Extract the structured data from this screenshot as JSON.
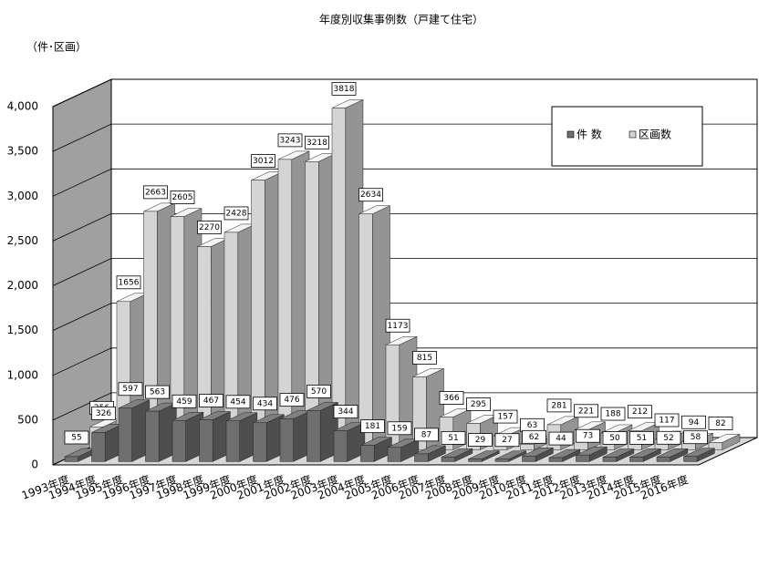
{
  "chart_data": {
    "type": "bar3d",
    "title": "年度別収集事例数（戸建て住宅）",
    "y_label": "（件･区画）",
    "categories": [
      "1993年度",
      "1994年度",
      "1995年度",
      "1996年度",
      "1997年度",
      "1998年度",
      "1999年度",
      "2000年度",
      "2001年度",
      "2002年度",
      "2003年度",
      "2004年度",
      "2005年度",
      "2006年度",
      "2007年度",
      "2008年度",
      "2009年度",
      "2010年度",
      "2011年度",
      "2012年度",
      "2013年度",
      "2014年度",
      "2015年度",
      "2016年度"
    ],
    "series": [
      {
        "name": "件 数",
        "color": "#6f6f6f",
        "values": [
          55,
          326,
          597,
          563,
          459,
          467,
          454,
          434,
          476,
          570,
          344,
          181,
          159,
          87,
          51,
          29,
          27,
          62,
          44,
          73,
          50,
          51,
          52,
          58
        ]
      },
      {
        "name": "区画数",
        "color": "#d4d4d4",
        "values": [
          256,
          1656,
          2663,
          2605,
          2270,
          2428,
          3012,
          3243,
          3218,
          3818,
          2634,
          1173,
          815,
          366,
          295,
          157,
          63,
          281,
          221,
          188,
          212,
          117,
          94,
          82
        ]
      }
    ],
    "ylim": [
      0,
      4000
    ],
    "yticks": [
      0,
      500,
      {
        "value": 1000,
        "label": "1,000"
      },
      {
        "value": 1500,
        "label": "1,500"
      },
      {
        "value": 2000,
        "label": "2,000"
      },
      {
        "value": 2500,
        "label": "2,500"
      },
      {
        "value": 3000,
        "label": "3,000"
      },
      {
        "value": 3500,
        "label": "3,500"
      },
      {
        "value": 4000,
        "label": "4,000"
      }
    ],
    "grid": true,
    "legend": "upper right"
  }
}
